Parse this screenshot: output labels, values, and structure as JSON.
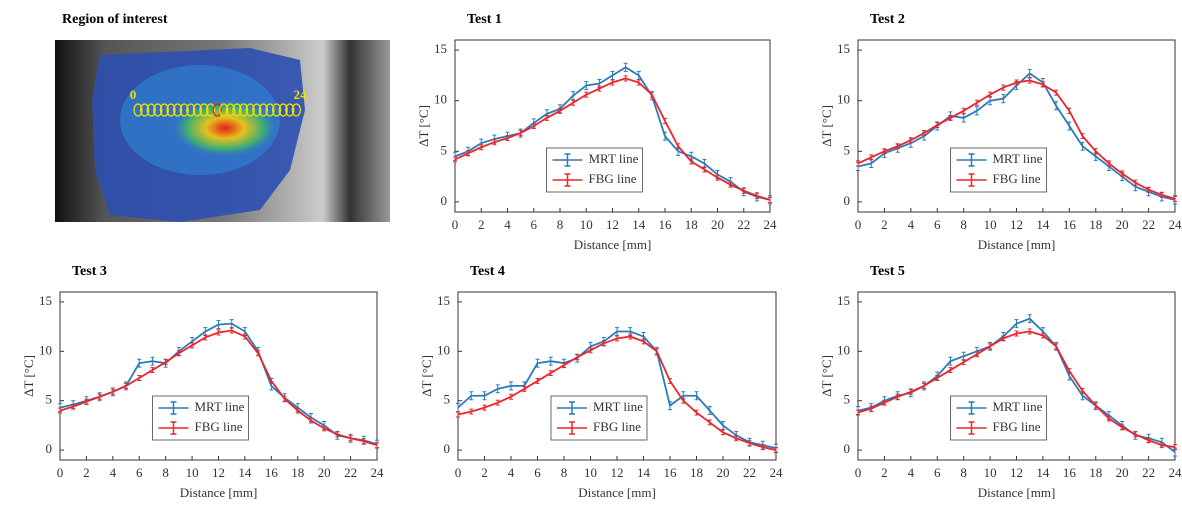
{
  "image_panel": {
    "title": "Region of interest",
    "start_label": "0",
    "end_label": "24"
  },
  "chart_data": [
    {
      "type": "line",
      "title": "Test 1",
      "x_label": "Distance [mm]",
      "y_label": "ΔT [°C]",
      "x": [
        0,
        1,
        2,
        3,
        4,
        5,
        6,
        7,
        8,
        9,
        10,
        11,
        12,
        13,
        14,
        15,
        16,
        17,
        18,
        19,
        20,
        21,
        22,
        23,
        24
      ],
      "xlim": [
        0,
        24
      ],
      "xticks": [
        0,
        2,
        4,
        6,
        8,
        10,
        12,
        14,
        16,
        18,
        20,
        22,
        24
      ],
      "ylim": [
        -1,
        16
      ],
      "yticks": [
        0,
        5,
        10,
        15
      ],
      "legend": "lower center",
      "series": [
        {
          "name": "MRT line",
          "color": "#2b7bba",
          "error": 0.4,
          "values": [
            4.5,
            5,
            5.8,
            6.2,
            6.5,
            6.8,
            7.8,
            8.7,
            9.2,
            10.5,
            11.5,
            11.7,
            12.5,
            13.3,
            12.5,
            10.5,
            6.5,
            5,
            4.5,
            3.8,
            2.7,
            2,
            1,
            0.5,
            0.2
          ]
        },
        {
          "name": "FBG line",
          "color": "#e8262b",
          "error": 0.25,
          "values": [
            4.2,
            4.8,
            5.4,
            5.9,
            6.3,
            6.8,
            7.5,
            8.3,
            9,
            9.8,
            10.6,
            11.2,
            11.8,
            12.2,
            11.8,
            10.6,
            8,
            5.5,
            4,
            3.2,
            2.4,
            1.7,
            1.1,
            0.6,
            0.2
          ]
        }
      ]
    },
    {
      "type": "line",
      "title": "Test 2",
      "x_label": "Distance [mm]",
      "y_label": "ΔT [°C]",
      "x": [
        0,
        1,
        2,
        3,
        4,
        5,
        6,
        7,
        8,
        9,
        10,
        11,
        12,
        13,
        14,
        15,
        16,
        17,
        18,
        19,
        20,
        21,
        22,
        23,
        24
      ],
      "xlim": [
        0,
        24
      ],
      "xticks": [
        0,
        2,
        4,
        6,
        8,
        10,
        12,
        14,
        16,
        18,
        20,
        22,
        24
      ],
      "ylim": [
        -1,
        16
      ],
      "yticks": [
        0,
        5,
        10,
        15
      ],
      "legend": "lower center",
      "series": [
        {
          "name": "MRT line",
          "color": "#2b7bba",
          "error": 0.4,
          "values": [
            3.5,
            3.8,
            4.8,
            5.3,
            5.8,
            6.5,
            7.5,
            8.5,
            8.3,
            9,
            10,
            10.2,
            11.5,
            12.7,
            11.8,
            9.5,
            7.5,
            5.5,
            4.5,
            3.5,
            2.5,
            1.5,
            1,
            0.5,
            0.2
          ]
        },
        {
          "name": "FBG line",
          "color": "#e8262b",
          "error": 0.25,
          "values": [
            3.8,
            4.4,
            5,
            5.5,
            6.1,
            6.8,
            7.6,
            8.3,
            9,
            9.8,
            10.6,
            11.3,
            11.8,
            12,
            11.6,
            10.8,
            9,
            6.5,
            5,
            3.8,
            2.8,
            1.9,
            1.2,
            0.7,
            0.3
          ]
        }
      ]
    },
    {
      "type": "line",
      "title": "Test 3",
      "x_label": "Distance [mm]",
      "y_label": "ΔT [°C]",
      "x": [
        0,
        1,
        2,
        3,
        4,
        5,
        6,
        7,
        8,
        9,
        10,
        11,
        12,
        13,
        14,
        15,
        16,
        17,
        18,
        19,
        20,
        21,
        22,
        23,
        24
      ],
      "xlim": [
        0,
        24
      ],
      "xticks": [
        0,
        2,
        4,
        6,
        8,
        10,
        12,
        14,
        16,
        18,
        20,
        22,
        24
      ],
      "ylim": [
        -1,
        16
      ],
      "yticks": [
        0,
        5,
        10,
        15
      ],
      "legend": "lower center",
      "series": [
        {
          "name": "MRT line",
          "color": "#2b7bba",
          "error": 0.4,
          "values": [
            4.3,
            4.6,
            5,
            5.4,
            5.9,
            6.5,
            8.8,
            9,
            8.8,
            10,
            11,
            12,
            12.7,
            12.8,
            12,
            10,
            6.5,
            5.3,
            4.3,
            3.3,
            2.5,
            1.5,
            1.2,
            1,
            0.6
          ]
        },
        {
          "name": "FBG line",
          "color": "#e8262b",
          "error": 0.25,
          "values": [
            4,
            4.4,
            4.9,
            5.4,
            5.9,
            6.5,
            7.3,
            8.1,
            8.9,
            9.8,
            10.6,
            11.4,
            11.9,
            12.1,
            11.5,
            9.8,
            7,
            5.2,
            4,
            3,
            2.2,
            1.6,
            1.2,
            0.9,
            0.5
          ]
        }
      ]
    },
    {
      "type": "line",
      "title": "Test 4",
      "x_label": "Distance [mm]",
      "y_label": "ΔT [°C]",
      "x": [
        0,
        1,
        2,
        3,
        4,
        5,
        6,
        7,
        8,
        9,
        10,
        11,
        12,
        13,
        14,
        15,
        16,
        17,
        18,
        19,
        20,
        21,
        22,
        23,
        24
      ],
      "xlim": [
        0,
        24
      ],
      "xticks": [
        0,
        2,
        4,
        6,
        8,
        10,
        12,
        14,
        16,
        18,
        20,
        22,
        24
      ],
      "ylim": [
        -1,
        16
      ],
      "yticks": [
        0,
        5,
        10,
        15
      ],
      "legend": "lower center",
      "series": [
        {
          "name": "MRT line",
          "color": "#2b7bba",
          "error": 0.4,
          "values": [
            4.3,
            5.5,
            5.5,
            6.2,
            6.5,
            6.5,
            8.8,
            9,
            8.8,
            9.3,
            10.5,
            11,
            12,
            12,
            11.5,
            10,
            4.5,
            5.5,
            5.5,
            4,
            2.5,
            1.5,
            0.8,
            0.5,
            0.2
          ]
        },
        {
          "name": "FBG line",
          "color": "#e8262b",
          "error": 0.25,
          "values": [
            3.6,
            3.9,
            4.3,
            4.8,
            5.4,
            6.2,
            7,
            7.8,
            8.6,
            9.4,
            10.1,
            10.8,
            11.3,
            11.5,
            11,
            10,
            7,
            5,
            3.8,
            2.8,
            1.8,
            1.2,
            0.7,
            0.3,
            0
          ]
        }
      ]
    },
    {
      "type": "line",
      "title": "Test 5",
      "x_label": "Distance [mm]",
      "y_label": "ΔT [°C]",
      "x": [
        0,
        1,
        2,
        3,
        4,
        5,
        6,
        7,
        8,
        9,
        10,
        11,
        12,
        13,
        14,
        15,
        16,
        17,
        18,
        19,
        20,
        21,
        22,
        23,
        24
      ],
      "xlim": [
        0,
        24
      ],
      "xticks": [
        0,
        2,
        4,
        6,
        8,
        10,
        12,
        14,
        16,
        18,
        20,
        22,
        24
      ],
      "ylim": [
        -1,
        16
      ],
      "yticks": [
        0,
        5,
        10,
        15
      ],
      "legend": "lower center",
      "series": [
        {
          "name": "MRT line",
          "color": "#2b7bba",
          "error": 0.4,
          "values": [
            4,
            4.3,
            5,
            5.5,
            5.8,
            6.5,
            7.5,
            9,
            9.5,
            10,
            10.5,
            11.5,
            12.8,
            13.3,
            12,
            10.5,
            7.5,
            5.5,
            4.5,
            3.5,
            2.5,
            1.5,
            1.2,
            0.8,
            -0.2
          ]
        },
        {
          "name": "FBG line",
          "color": "#e8262b",
          "error": 0.25,
          "values": [
            3.8,
            4.2,
            4.8,
            5.4,
            5.9,
            6.5,
            7.3,
            8.1,
            8.9,
            9.7,
            10.5,
            11.3,
            11.8,
            12,
            11.6,
            10.5,
            8,
            6,
            4.5,
            3.2,
            2.3,
            1.6,
            1,
            0.5,
            0.3
          ]
        }
      ]
    }
  ]
}
